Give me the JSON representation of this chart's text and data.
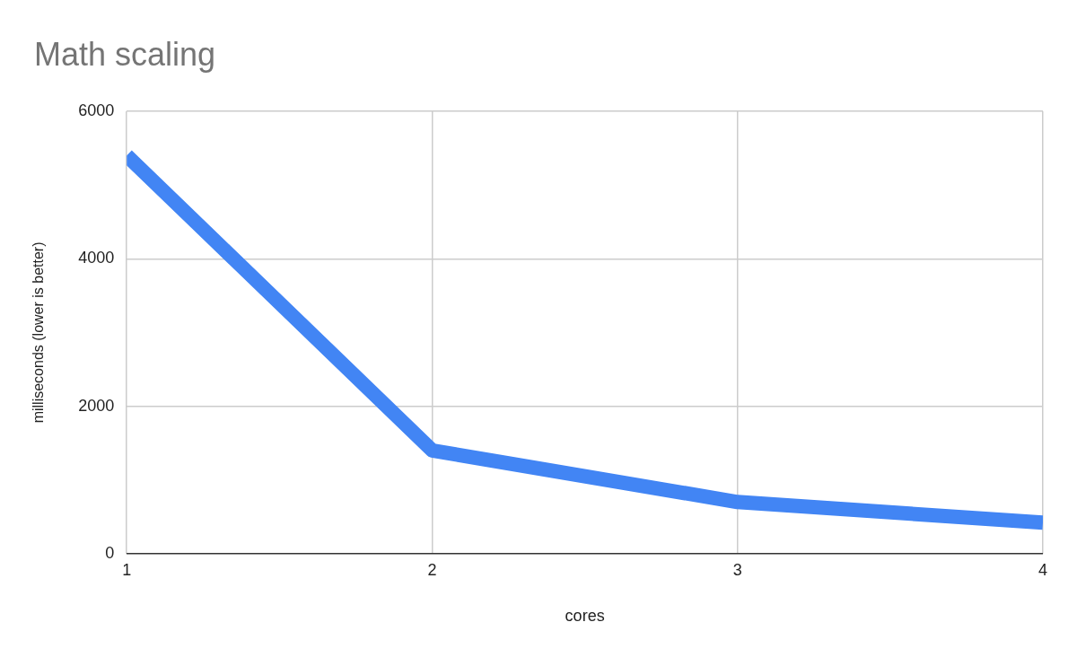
{
  "chart_data": {
    "type": "line",
    "title": "Math scaling",
    "xlabel": "cores",
    "ylabel": "milliseconds (lower is better)",
    "x": [
      1,
      2,
      3,
      4
    ],
    "series": [
      {
        "color": "#4285f4",
        "values": [
          5400,
          1400,
          700,
          420
        ]
      }
    ],
    "xlim": [
      1,
      4
    ],
    "xticks": [
      1,
      2,
      3,
      4
    ],
    "ylim": [
      0,
      6000
    ],
    "yticks": [
      0,
      2000,
      4000,
      6000
    ],
    "grid": true,
    "legend": false,
    "marker": "none",
    "line_style": "solid"
  }
}
